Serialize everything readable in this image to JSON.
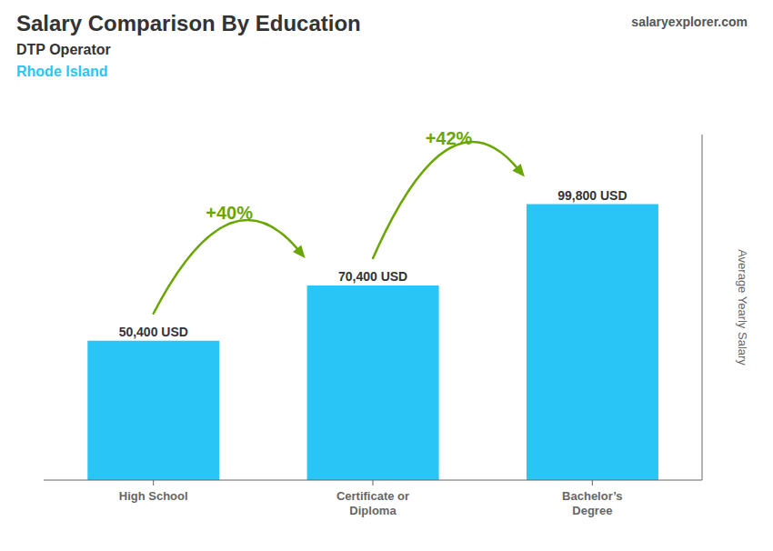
{
  "chart_data": {
    "type": "bar",
    "title": "Salary Comparison By Education",
    "subtitle": [
      "DTP Operator",
      "Rhode Island"
    ],
    "categories": [
      "High School",
      "Certificate or\nDiploma",
      "Bachelor’s\nDegree"
    ],
    "values": [
      50400,
      70400,
      99800
    ],
    "value_labels": [
      "50,400 USD",
      "70,400 USD",
      "99,800 USD"
    ],
    "data_labels": true,
    "color": "#29c5f6",
    "ylabel": "Average Yearly Salary",
    "ylim": [
      0,
      125000
    ],
    "tick_labels": "x",
    "grid": false,
    "annotations": [
      "+40%",
      "+42%",
      "salaryexplorer.com"
    ]
  }
}
